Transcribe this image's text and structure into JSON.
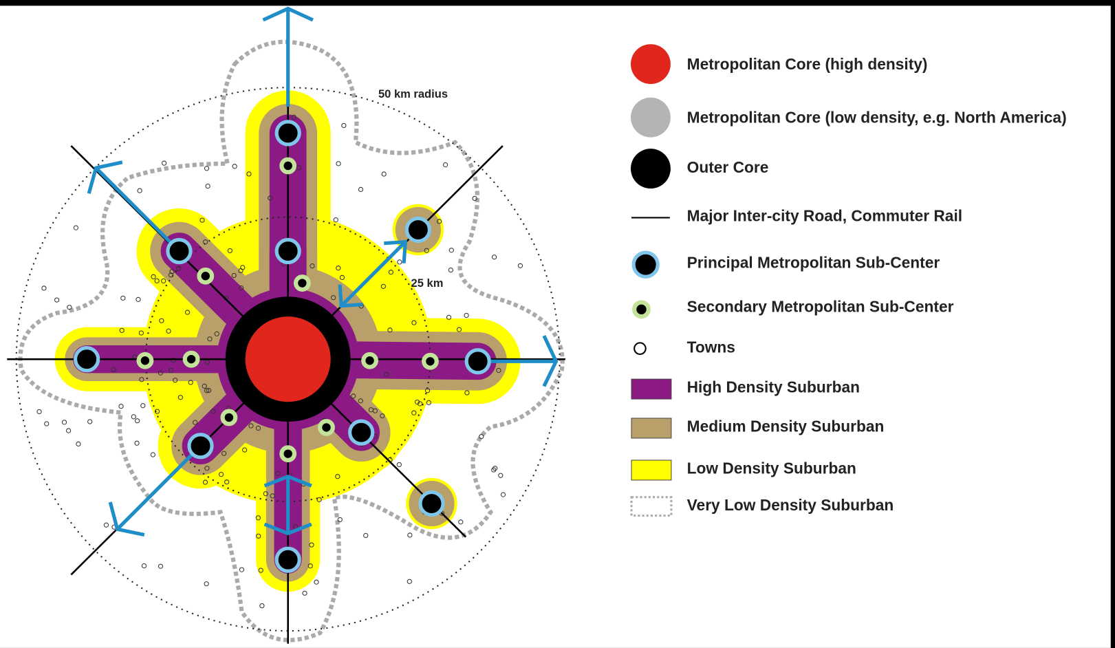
{
  "annotations": [
    "50 km radius",
    "25 km"
  ],
  "legend": [
    "Metropolitan Core (high density)",
    "Metropolitan Core (low density, e.g. North America)",
    "Outer Core",
    "Major Inter-city Road, Commuter Rail",
    "Principal Metropolitan Sub-Center",
    "Secondary Metropolitan Sub-Center",
    "Towns",
    "High Density Suburban",
    "Medium Density Suburban",
    "Low Density Suburban",
    "Very Low Density Suburban"
  ]
}
